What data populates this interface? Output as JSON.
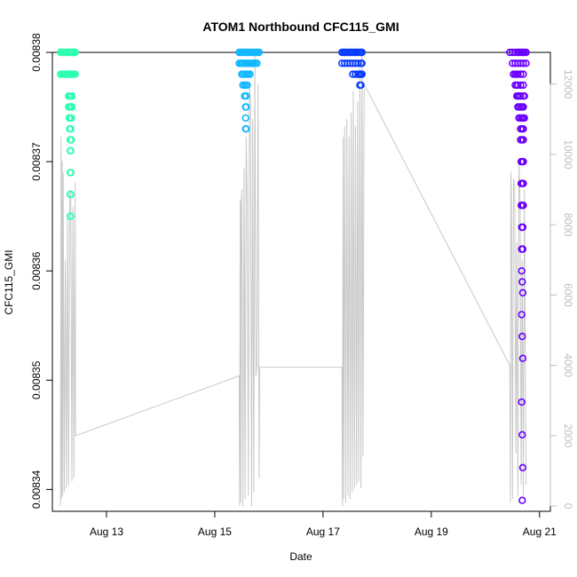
{
  "chart_data": {
    "type": "scatter",
    "title": "ATOM1 Northbound CFC115_GMI",
    "xlabel": "Date",
    "ylabel": "CFC115_GMI",
    "xlim": [
      12.0,
      21.2
    ],
    "ylim": [
      0.008338,
      0.00838
    ],
    "y2lim": [
      -150,
      12900
    ],
    "x_ticks": [
      {
        "value": 13,
        "label": "Aug 13"
      },
      {
        "value": 15,
        "label": "Aug 15"
      },
      {
        "value": 17,
        "label": "Aug 17"
      },
      {
        "value": 19,
        "label": "Aug 19"
      },
      {
        "value": 21,
        "label": "Aug 21"
      }
    ],
    "y_ticks": [
      {
        "value": 0.00834,
        "label": "0.00834"
      },
      {
        "value": 0.00835,
        "label": "0.00835"
      },
      {
        "value": 0.00836,
        "label": "0.00836"
      },
      {
        "value": 0.00837,
        "label": "0.00837"
      },
      {
        "value": 0.00838,
        "label": "0.00838"
      }
    ],
    "y2_ticks": [
      {
        "value": 0,
        "label": "0"
      },
      {
        "value": 2000,
        "label": "2000"
      },
      {
        "value": 4000,
        "label": "4000"
      },
      {
        "value": 6000,
        "label": "6000"
      },
      {
        "value": 8000,
        "label": "8000"
      },
      {
        "value": 10000,
        "label": "10000"
      },
      {
        "value": 12000,
        "label": "12000"
      }
    ],
    "grid": false,
    "legend": "none",
    "colors": {
      "segment1": "#2effb0",
      "segment2": "#12b8ff",
      "segment3": "#0a3cff",
      "segment4": "#6a00ff",
      "altitude_line": "#c8c8c8",
      "right_axis": "#bdbdbd"
    },
    "series": [
      {
        "color": "#2effb0",
        "x": [
          12.15,
          12.18,
          12.2,
          12.22,
          12.24,
          12.26,
          12.28,
          12.3,
          12.32,
          12.34,
          12.35,
          12.36,
          12.37,
          12.38,
          12.39,
          12.4,
          12.41,
          12.42,
          12.15,
          12.18,
          12.2,
          12.22,
          12.24,
          12.26,
          12.28,
          12.3,
          12.32,
          12.34,
          12.36,
          12.38,
          12.4,
          12.42,
          12.3,
          12.31,
          12.32,
          12.33,
          12.34,
          12.35,
          12.36,
          12.3,
          12.32,
          12.34,
          12.36,
          12.31,
          12.33,
          12.35,
          12.32,
          12.34,
          12.33,
          12.35,
          12.33,
          12.34,
          12.33,
          12.34,
          12.33,
          12.34,
          12.33,
          12.34
        ],
        "y": [
          0.00838,
          0.00838,
          0.00838,
          0.00838,
          0.00838,
          0.00838,
          0.00838,
          0.00838,
          0.00838,
          0.00838,
          0.00838,
          0.00838,
          0.00838,
          0.00838,
          0.00838,
          0.00838,
          0.00838,
          0.00838,
          0.008378,
          0.008378,
          0.008378,
          0.008378,
          0.008378,
          0.008378,
          0.008378,
          0.008378,
          0.008378,
          0.008378,
          0.008378,
          0.008378,
          0.008378,
          0.008378,
          0.008376,
          0.008376,
          0.008376,
          0.008376,
          0.008376,
          0.008376,
          0.008376,
          0.008375,
          0.008375,
          0.008375,
          0.008375,
          0.008374,
          0.008374,
          0.008374,
          0.008373,
          0.008373,
          0.008372,
          0.008372,
          0.008371,
          0.008371,
          0.008369,
          0.008369,
          0.008367,
          0.008367,
          0.008365,
          0.008365
        ]
      },
      {
        "color": "#12b8ff",
        "x": [
          15.45,
          15.48,
          15.5,
          15.52,
          15.55,
          15.58,
          15.6,
          15.62,
          15.65,
          15.68,
          15.7,
          15.72,
          15.75,
          15.78,
          15.8,
          15.82,
          15.45,
          15.48,
          15.5,
          15.52,
          15.55,
          15.58,
          15.6,
          15.62,
          15.65,
          15.68,
          15.7,
          15.72,
          15.75,
          15.78,
          15.5,
          15.52,
          15.55,
          15.58,
          15.6,
          15.62,
          15.65,
          15.52,
          15.55,
          15.58,
          15.6,
          15.55,
          15.58,
          15.57,
          15.58,
          15.57,
          15.58,
          15.57
        ],
        "y": [
          0.00838,
          0.00838,
          0.00838,
          0.00838,
          0.00838,
          0.00838,
          0.00838,
          0.00838,
          0.00838,
          0.00838,
          0.00838,
          0.00838,
          0.00838,
          0.00838,
          0.00838,
          0.00838,
          0.008379,
          0.008379,
          0.008379,
          0.008379,
          0.008379,
          0.008379,
          0.008379,
          0.008379,
          0.008379,
          0.008379,
          0.008379,
          0.008379,
          0.008379,
          0.008379,
          0.008378,
          0.008378,
          0.008378,
          0.008378,
          0.008378,
          0.008378,
          0.008378,
          0.008377,
          0.008377,
          0.008377,
          0.008377,
          0.008376,
          0.008376,
          0.008375,
          0.008375,
          0.008374,
          0.008373,
          0.008373
        ]
      },
      {
        "color": "#0a3cff",
        "x": [
          17.35,
          17.38,
          17.4,
          17.42,
          17.45,
          17.48,
          17.5,
          17.52,
          17.55,
          17.58,
          17.6,
          17.62,
          17.65,
          17.68,
          17.7,
          17.72,
          17.35,
          17.4,
          17.45,
          17.5,
          17.55,
          17.6,
          17.65,
          17.7,
          17.72,
          17.55,
          17.6,
          17.65,
          17.68,
          17.7,
          17.72,
          17.6,
          17.65,
          17.68,
          17.7,
          17.68,
          17.7
        ],
        "y": [
          0.00838,
          0.00838,
          0.00838,
          0.00838,
          0.00838,
          0.00838,
          0.00838,
          0.00838,
          0.00838,
          0.00838,
          0.00838,
          0.00838,
          0.00838,
          0.00838,
          0.00838,
          0.00838,
          0.008379,
          0.008379,
          0.008379,
          0.008379,
          0.008379,
          0.008379,
          0.008379,
          0.008379,
          0.008379,
          0.008378,
          0.008378,
          0.008378,
          0.008378,
          0.008378,
          0.008378,
          0.008378,
          0.008378,
          0.008378,
          0.008378,
          0.008377,
          0.008377
        ]
      },
      {
        "color": "#6a00ff",
        "x": [
          20.45,
          20.5,
          20.55,
          20.6,
          20.62,
          20.65,
          20.68,
          20.7,
          20.72,
          20.75,
          20.5,
          20.55,
          20.6,
          20.65,
          20.7,
          20.75,
          20.52,
          20.55,
          20.58,
          20.6,
          20.65,
          20.7,
          20.55,
          20.58,
          20.6,
          20.65,
          20.7,
          20.58,
          20.6,
          20.62,
          20.65,
          20.7,
          20.72,
          20.6,
          20.62,
          20.65,
          20.68,
          20.7,
          20.62,
          20.65,
          20.68,
          20.7,
          20.72,
          20.65,
          20.68,
          20.7,
          20.65,
          20.68,
          20.7,
          20.66,
          20.68,
          20.7,
          20.66,
          20.68,
          20.7,
          20.66,
          20.68,
          20.7,
          20.67,
          20.68,
          20.69,
          20.67,
          20.68,
          20.69,
          20.67,
          20.68,
          20.69,
          20.67,
          20.68,
          20.69,
          20.67,
          20.68,
          20.69,
          20.68
        ],
        "y": [
          0.00838,
          0.00838,
          0.00838,
          0.00838,
          0.00838,
          0.00838,
          0.00838,
          0.00838,
          0.00838,
          0.00838,
          0.008379,
          0.008379,
          0.008379,
          0.008379,
          0.008379,
          0.008379,
          0.008378,
          0.008378,
          0.008378,
          0.008378,
          0.008378,
          0.008378,
          0.008377,
          0.008377,
          0.008377,
          0.008377,
          0.008377,
          0.008376,
          0.008376,
          0.008376,
          0.008376,
          0.008376,
          0.008376,
          0.008375,
          0.008375,
          0.008375,
          0.008375,
          0.008375,
          0.008374,
          0.008374,
          0.008374,
          0.008374,
          0.008374,
          0.008373,
          0.008373,
          0.008373,
          0.008372,
          0.008372,
          0.008372,
          0.00837,
          0.00837,
          0.00837,
          0.008368,
          0.008368,
          0.008368,
          0.008366,
          0.008366,
          0.008366,
          0.008364,
          0.008364,
          0.008364,
          0.008362,
          0.008362,
          0.008362,
          0.00836,
          0.008359,
          0.008358,
          0.008356,
          0.008354,
          0.008352,
          0.008348,
          0.008345,
          0.008342,
          0.008339
        ]
      }
    ],
    "altitude_series": {
      "color": "#c8c8c8",
      "axis": "right",
      "x": [
        12.15,
        12.16,
        12.17,
        12.18,
        12.19,
        12.2,
        12.22,
        12.24,
        12.26,
        12.28,
        12.3,
        12.32,
        12.34,
        12.36,
        12.38,
        12.4,
        12.42,
        12.43,
        15.45,
        15.46,
        15.47,
        15.48,
        15.49,
        15.5,
        15.52,
        15.54,
        15.56,
        15.58,
        15.6,
        15.62,
        15.64,
        15.66,
        15.68,
        15.7,
        15.72,
        15.74,
        15.76,
        15.78,
        15.8,
        15.82,
        15.83,
        17.35,
        17.36,
        17.37,
        17.38,
        17.4,
        17.42,
        17.44,
        17.46,
        17.48,
        17.5,
        17.52,
        17.54,
        17.56,
        17.58,
        17.6,
        17.62,
        17.64,
        17.66,
        17.68,
        17.7,
        17.72,
        17.74,
        17.76,
        20.45,
        20.46,
        20.47,
        20.48,
        20.5,
        20.52,
        20.54,
        20.56,
        20.58,
        20.6,
        20.62,
        20.64,
        20.66,
        20.68,
        20.7,
        20.72,
        20.75
      ],
      "y": [
        0,
        10500,
        200,
        9800,
        300,
        9500,
        400,
        7000,
        500,
        8200,
        600,
        8800,
        9000,
        700,
        8500,
        800,
        9200,
        2000,
        3700,
        0,
        8700,
        100,
        8600,
        9000,
        0,
        9600,
        200,
        10500,
        8700,
        300,
        12000,
        11500,
        0,
        11000,
        400,
        12800,
        3700,
        4000,
        12000,
        800,
        3950,
        3950,
        0,
        10500,
        200,
        10800,
        100,
        11000,
        300,
        10500,
        200,
        11200,
        400,
        11800,
        500,
        10800,
        600,
        11500,
        700,
        12500,
        500,
        12800,
        1400,
        12000,
        4000,
        100,
        9500,
        8900,
        200,
        9300,
        9100,
        1500,
        7500,
        300,
        9800,
        8600,
        600,
        7000,
        300,
        9000,
        600
      ]
    }
  }
}
